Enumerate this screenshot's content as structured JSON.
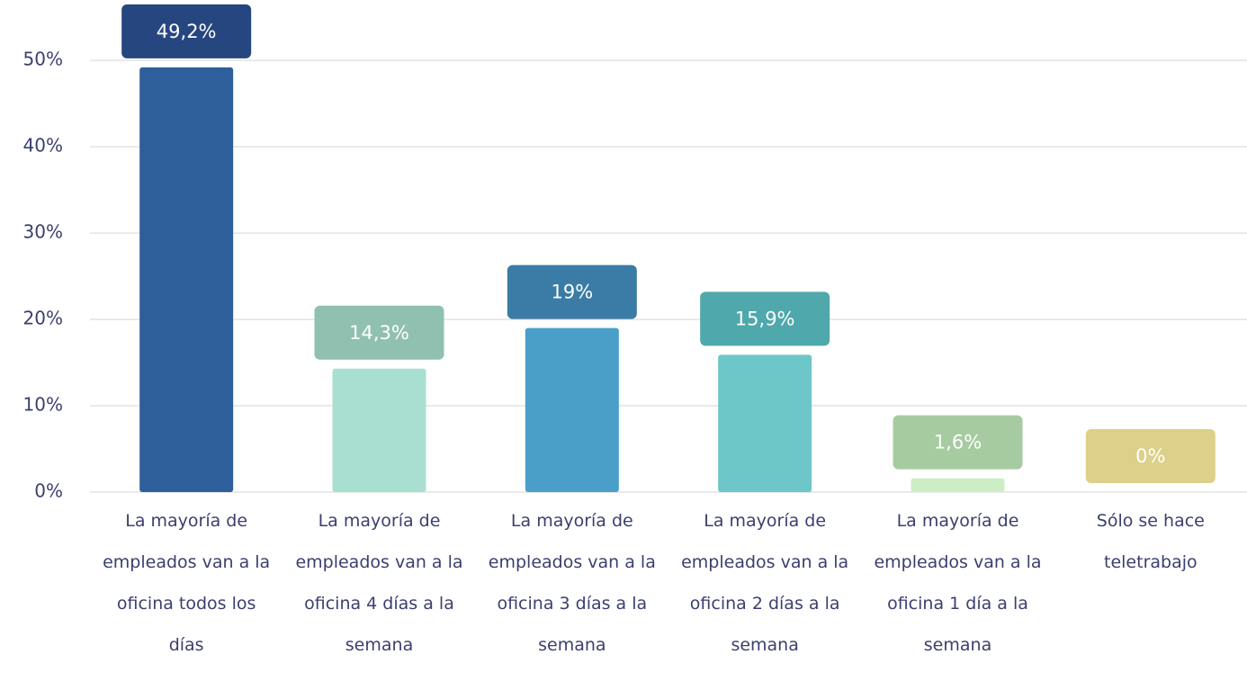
{
  "chart_data": {
    "type": "bar",
    "categories": [
      "La mayoría de empleados van a la oficina todos los días",
      "La mayoría de empleados van a la oficina 4 días a la semana",
      "La mayoría de empleados van a la oficina 3 días a la semana",
      "La mayoría de empleados van a la oficina 2 días a la semana",
      "La mayoría de empleados van a la oficina 1 día a la semana",
      "Sólo se hace teletrabajo"
    ],
    "values": [
      49.2,
      14.3,
      19,
      15.9,
      1.6,
      0
    ],
    "value_labels": [
      "49,2%",
      "14,3%",
      "19%",
      "15,9%",
      "1,6%",
      "0%"
    ],
    "colors": [
      "#2e5f9a",
      "#a8dfd0",
      "#4a9fc8",
      "#6dc7c8",
      "#cdeec5",
      "#e8dd9c"
    ],
    "label_colors": [
      "#26467f",
      "#8fc0b0",
      "#3a7ca5",
      "#4fa8ab",
      "#a6cba0",
      "#dcd08a"
    ],
    "ylim": [
      0,
      57
    ],
    "yticks": [
      {
        "value": 0,
        "label": "0%"
      },
      {
        "value": 10,
        "label": "10%"
      },
      {
        "value": 20,
        "label": "20%"
      },
      {
        "value": 30,
        "label": "30%"
      },
      {
        "value": 40,
        "label": "40%"
      },
      {
        "value": 50,
        "label": "50%"
      }
    ],
    "grid": true
  }
}
